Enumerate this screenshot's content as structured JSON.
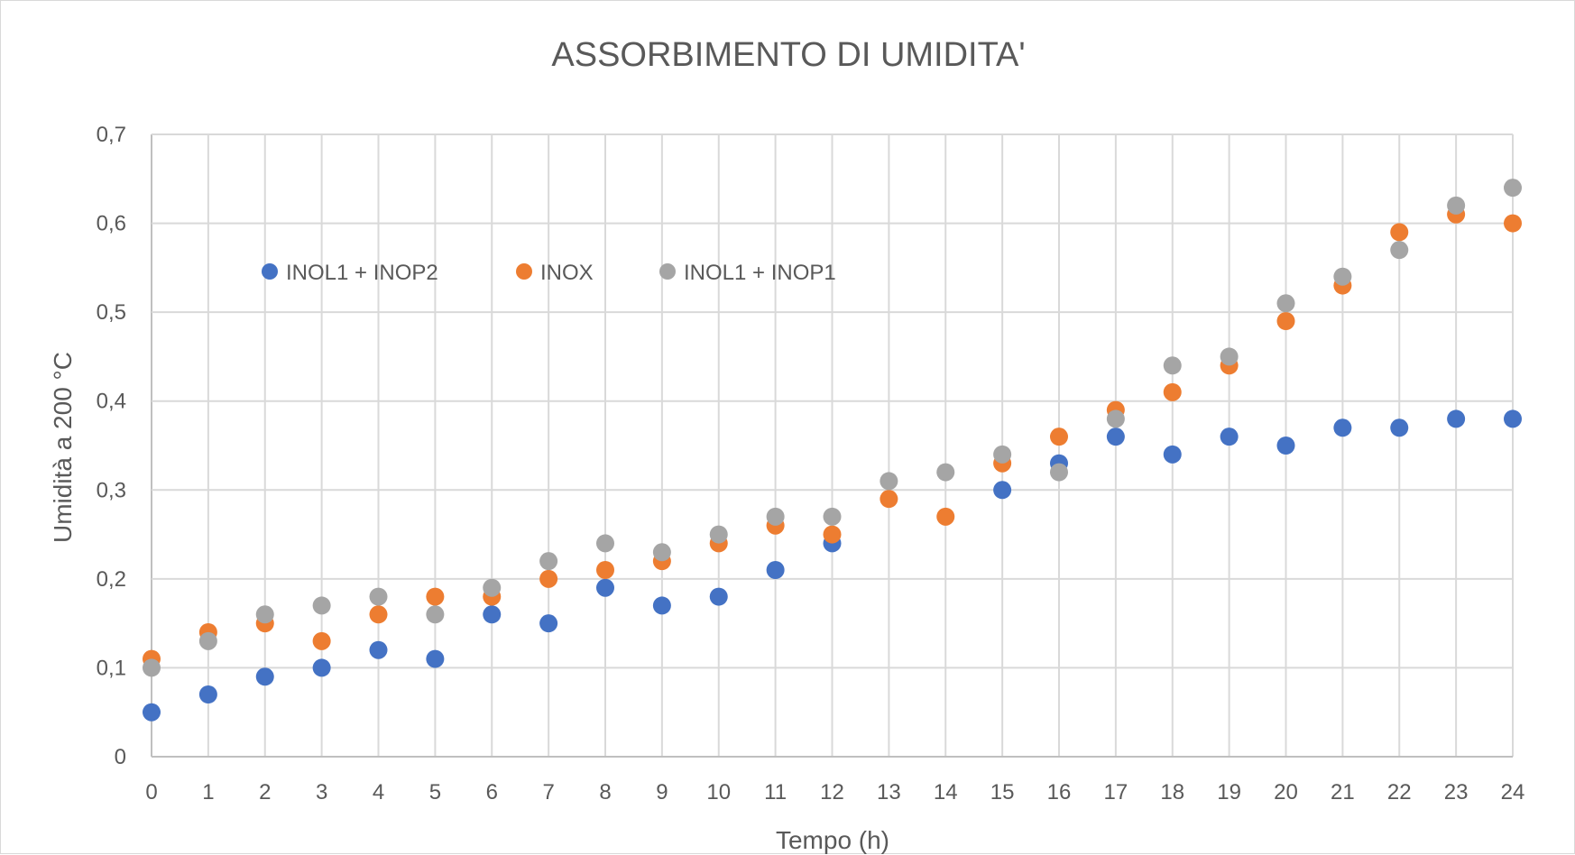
{
  "chart_data": {
    "type": "scatter",
    "title": "ASSORBIMENTO DI UMIDITA'",
    "xlabel": "Tempo (h)",
    "ylabel": "Umidità a 200 °C",
    "xlim": [
      0,
      24
    ],
    "ylim": [
      0,
      0.7
    ],
    "x_ticks": [
      "0",
      "1",
      "2",
      "3",
      "4",
      "5",
      "6",
      "7",
      "8",
      "9",
      "10",
      "11",
      "12",
      "13",
      "14",
      "15",
      "16",
      "17",
      "18",
      "19",
      "20",
      "21",
      "22",
      "23",
      "24"
    ],
    "y_ticks": [
      "0",
      "0,1",
      "0,2",
      "0,3",
      "0,4",
      "0,5",
      "0,6",
      "0,7"
    ],
    "grid": true,
    "legend_position": "top-left",
    "x": [
      0,
      1,
      2,
      3,
      4,
      5,
      6,
      7,
      8,
      9,
      10,
      11,
      12,
      13,
      14,
      15,
      16,
      17,
      18,
      19,
      20,
      21,
      22,
      23,
      24
    ],
    "series": [
      {
        "name": "INOL1 + INOP2",
        "color": "#4472c4",
        "values": [
          0.05,
          0.07,
          0.09,
          0.1,
          0.12,
          0.11,
          0.16,
          0.15,
          0.19,
          0.17,
          0.18,
          0.21,
          0.24,
          null,
          null,
          0.3,
          0.33,
          0.36,
          0.34,
          0.36,
          0.35,
          0.37,
          0.37,
          0.38,
          0.38
        ]
      },
      {
        "name": "INOX",
        "color": "#ed7d31",
        "values": [
          0.11,
          0.14,
          0.15,
          0.13,
          0.16,
          0.18,
          0.18,
          0.2,
          0.21,
          0.22,
          0.24,
          0.26,
          0.25,
          0.29,
          0.27,
          0.33,
          0.36,
          0.39,
          0.41,
          0.44,
          0.49,
          0.53,
          0.59,
          0.61,
          0.6
        ]
      },
      {
        "name": "INOL1 + INOP1",
        "color": "#a5a5a5",
        "values": [
          0.1,
          0.13,
          0.16,
          0.17,
          0.18,
          0.16,
          0.19,
          0.22,
          0.24,
          0.23,
          0.25,
          0.27,
          0.27,
          0.31,
          0.32,
          0.34,
          0.32,
          0.38,
          0.44,
          0.45,
          0.51,
          0.54,
          0.57,
          0.62,
          0.64
        ]
      }
    ]
  }
}
